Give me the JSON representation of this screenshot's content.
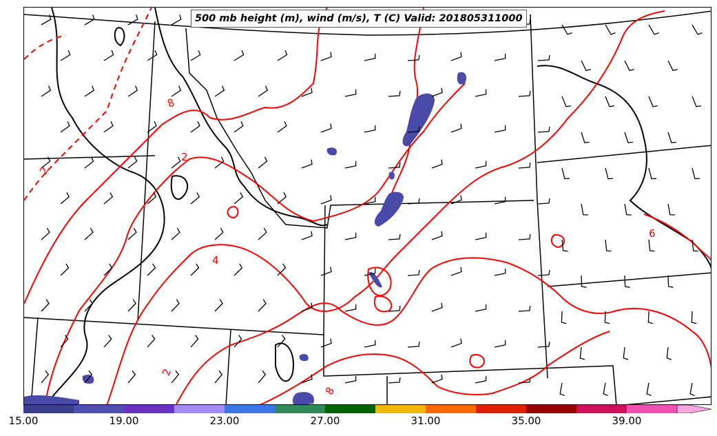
{
  "title": "500 mb height (m), wind (m/s), T (C) Valid: 201805311000",
  "contour_labels": [
    "2",
    "2",
    "4",
    "6",
    "8",
    "2",
    "8"
  ],
  "colorbar": {
    "colors": [
      "#3d3d8f",
      "#4f4fb3",
      "#6a33c4",
      "#a58af5",
      "#3a76e6",
      "#2e8b57",
      "#006400",
      "#f0b800",
      "#ff6a00",
      "#e02000",
      "#990000",
      "#d0105a",
      "#f050b0",
      "#f8a8e0"
    ],
    "tick_labels": [
      "15.00",
      "19.00",
      "23.00",
      "27.00",
      "31.00",
      "35.00",
      "39.00"
    ]
  },
  "colors": {
    "temperature_contour": "#ff0000",
    "height_contour": "#000000",
    "wind_barb": "#000000",
    "precip_shading": "#4a4aa8"
  }
}
